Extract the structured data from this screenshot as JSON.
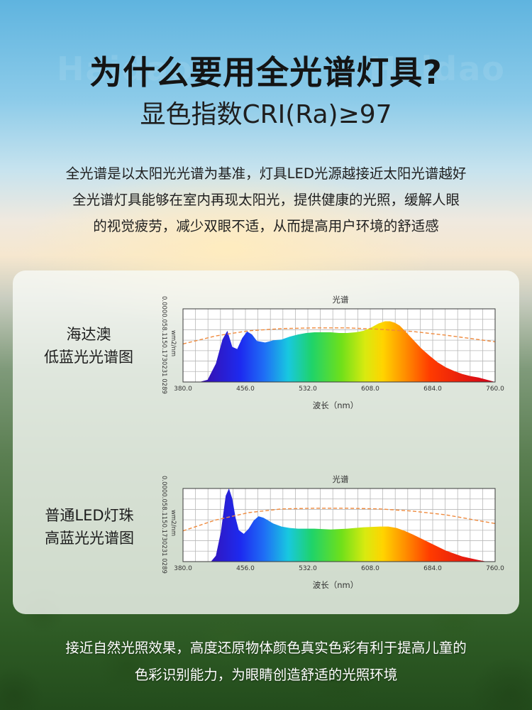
{
  "header": {
    "title": "为什么要用全光谱灯具?",
    "subtitle": "显色指数CRI(Ra)≥97"
  },
  "intro": {
    "lines": [
      "全光谱是以太阳光光谱为基准，灯具LED光源越接近太阳光谱越好",
      "全光谱灯具能够在室内再现太阳光，提供健康的光照，缓解人眼",
      "的视觉疲劳，减少双眼不适，从而提高用户环境的舒适感"
    ]
  },
  "watermark": "Haidao",
  "footer": {
    "lines": [
      "接近自然光照效果，高度还原物体颜色真实色彩有利于提高儿童的",
      "色彩识别能力，为眼睛创造舒适的光照环境"
    ]
  },
  "chart_data": [
    {
      "type": "area",
      "label_lines": [
        "海达澳",
        "低蓝光光谱图"
      ],
      "title": "光谱",
      "xlabel": "波长（nm）",
      "ylabel": "wm2/nm",
      "ytick_text": "0.0000.058.1150.1730231 0289",
      "xlim": [
        380,
        760
      ],
      "x_ticks": [
        "380.0",
        "456.0",
        "532.0",
        "608.0",
        "684.0",
        "760.0"
      ],
      "ylim": [
        0,
        1
      ],
      "grid": true,
      "spectrum": {
        "x": [
          400,
          410,
          420,
          428,
          434,
          440,
          446,
          452,
          458,
          464,
          470,
          480,
          490,
          500,
          510,
          520,
          530,
          540,
          550,
          560,
          570,
          580,
          590,
          600,
          610,
          618,
          626,
          632,
          638,
          644,
          650,
          660,
          670,
          680,
          690,
          700,
          710,
          720,
          730,
          740,
          750,
          760
        ],
        "y": [
          0.0,
          0.03,
          0.25,
          0.58,
          0.7,
          0.48,
          0.45,
          0.6,
          0.69,
          0.65,
          0.56,
          0.54,
          0.57,
          0.58,
          0.62,
          0.65,
          0.67,
          0.68,
          0.68,
          0.68,
          0.67,
          0.67,
          0.68,
          0.7,
          0.75,
          0.8,
          0.83,
          0.83,
          0.81,
          0.77,
          0.7,
          0.58,
          0.46,
          0.36,
          0.27,
          0.2,
          0.15,
          0.11,
          0.08,
          0.06,
          0.03,
          0.0
        ]
      },
      "reference_curve": {
        "style": "dashed",
        "color": "#ef8a3d",
        "x": [
          380,
          420,
          460,
          500,
          540,
          580,
          620,
          660,
          700,
          740,
          760
        ],
        "y": [
          0.52,
          0.63,
          0.7,
          0.73,
          0.74,
          0.74,
          0.72,
          0.69,
          0.64,
          0.58,
          0.55
        ]
      }
    },
    {
      "type": "area",
      "label_lines": [
        "普通LED灯珠",
        "高蓝光光谱图"
      ],
      "title": "光谱",
      "xlabel": "波长（nm）",
      "ylabel": "wm2/nm",
      "ytick_text": "0.0000.058.1150.1730231 0289",
      "xlim": [
        380,
        760
      ],
      "x_ticks": [
        "380.0",
        "456.0",
        "532.0",
        "608.0",
        "684.0",
        "760.0"
      ],
      "ylim": [
        0,
        1
      ],
      "grid": true,
      "spectrum": {
        "x": [
          414,
          420,
          426,
          432,
          436,
          440,
          444,
          448,
          454,
          460,
          466,
          472,
          478,
          484,
          490,
          500,
          510,
          520,
          540,
          560,
          580,
          600,
          620,
          630,
          640,
          650,
          660,
          680,
          700,
          720,
          740,
          750
        ],
        "y": [
          0.0,
          0.08,
          0.4,
          0.9,
          1.0,
          0.86,
          0.6,
          0.43,
          0.38,
          0.45,
          0.56,
          0.62,
          0.6,
          0.56,
          0.52,
          0.48,
          0.46,
          0.45,
          0.45,
          0.44,
          0.45,
          0.47,
          0.48,
          0.48,
          0.46,
          0.42,
          0.37,
          0.26,
          0.15,
          0.07,
          0.02,
          0.0
        ]
      },
      "reference_curve": {
        "style": "dashed",
        "color": "#ef8a3d",
        "x": [
          380,
          420,
          460,
          500,
          540,
          580,
          620,
          660,
          700,
          740,
          760
        ],
        "y": [
          0.42,
          0.57,
          0.67,
          0.72,
          0.73,
          0.73,
          0.72,
          0.69,
          0.64,
          0.56,
          0.52
        ]
      }
    }
  ]
}
